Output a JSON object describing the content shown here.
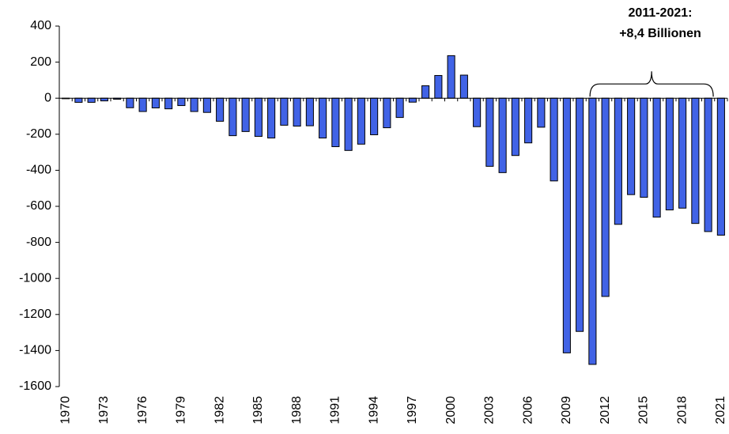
{
  "chart_data": {
    "type": "bar",
    "categories": [
      "1970",
      null,
      null,
      "1973",
      null,
      null,
      "1976",
      null,
      null,
      "1979",
      null,
      null,
      "1982",
      null,
      null,
      "1985",
      null,
      null,
      "1988",
      null,
      null,
      "1991",
      null,
      null,
      "1994",
      null,
      null,
      "1997",
      null,
      null,
      "2000",
      null,
      null,
      "2003",
      null,
      null,
      "2006",
      null,
      null,
      "2009",
      null,
      null,
      "2012",
      null,
      null,
      "2015",
      null,
      null,
      "2018",
      null,
      null,
      "2021"
    ],
    "values": [
      -3,
      -23,
      -23,
      -15,
      -6,
      -53,
      -74,
      -54,
      -59,
      -41,
      -74,
      -79,
      -128,
      -208,
      -185,
      -212,
      -221,
      -150,
      -155,
      -153,
      -221,
      -269,
      -290,
      -255,
      -203,
      -164,
      -107,
      -22,
      69,
      126,
      236,
      128,
      -158,
      -378,
      -413,
      -318,
      -248,
      -161,
      -459,
      -1413,
      -1294,
      -1477,
      -1100,
      -700,
      -535,
      -550,
      -660,
      -620,
      -610,
      -695,
      -740,
      -760
    ],
    "color": "#4163e6",
    "ylim": [
      -1600,
      400
    ],
    "yticks": [
      -1600,
      -1400,
      -1200,
      -1000,
      -800,
      -600,
      -400,
      -200,
      0,
      200,
      400
    ],
    "grid": false,
    "annotation": [
      "2011-2021:",
      "+8,4 Billionen"
    ]
  }
}
